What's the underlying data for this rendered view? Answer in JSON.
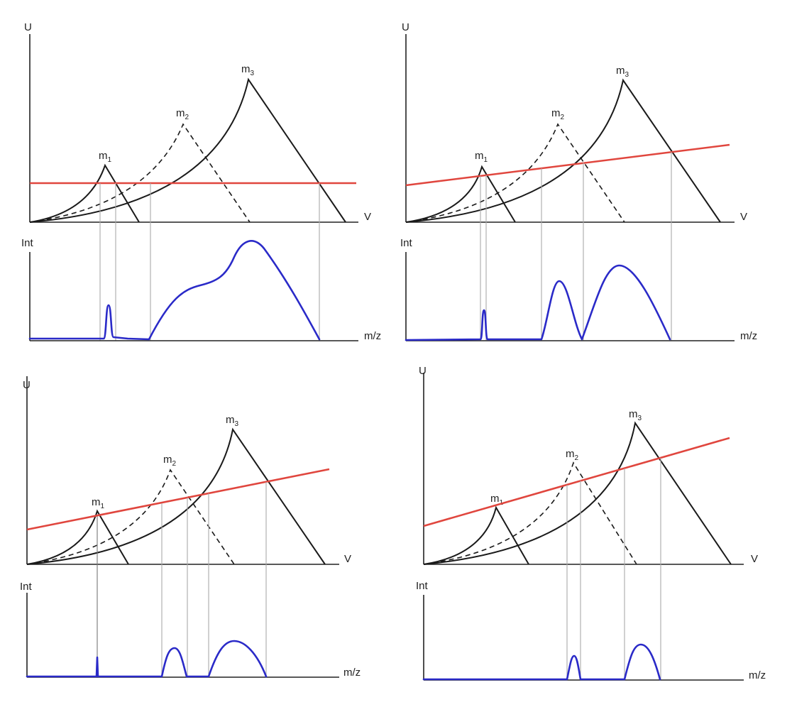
{
  "labels": {
    "u_axis": "U",
    "v_axis": "V",
    "int_axis": "Int",
    "mz_axis": "m/z",
    "mass_prefix": "m",
    "m1_sub": "1",
    "m2_sub": "2",
    "m3_sub": "3"
  },
  "colors": {
    "scan_line": "#e0463e",
    "spectrum": "#2a2ac8",
    "stability_curve": "#1a1a1a",
    "guide_line": "#aaaaaa"
  }
}
